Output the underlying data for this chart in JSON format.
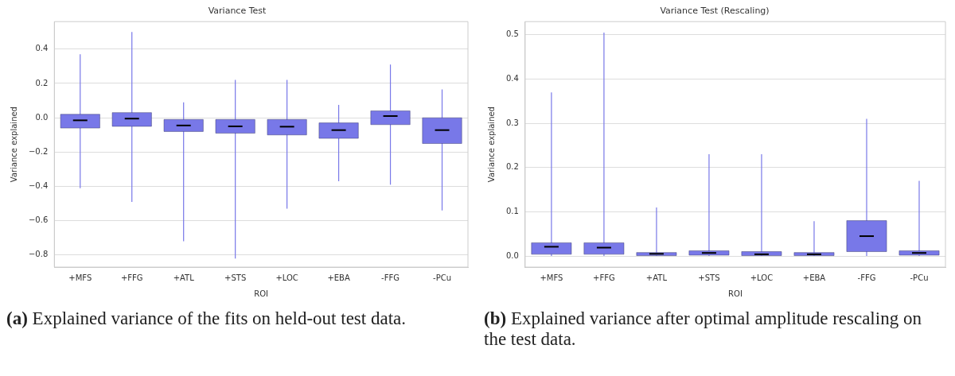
{
  "chart_data": [
    {
      "type": "box",
      "title": "Variance Test",
      "xlabel": "ROI",
      "ylabel": "Variance explained",
      "categories": [
        "+MFS",
        "+FFG",
        "+ATL",
        "+STS",
        "+LOC",
        "+EBA",
        "-FFG",
        "-PCu"
      ],
      "color": "#7878e8",
      "ylim": [
        -0.87,
        0.56
      ],
      "yticks": [
        {
          "value": -0.8,
          "label": "−0.8"
        },
        {
          "value": -0.6,
          "label": "−0.6"
        },
        {
          "value": -0.4,
          "label": "−0.4"
        },
        {
          "value": -0.2,
          "label": "−0.2"
        },
        {
          "value": 0,
          "label": "0.0"
        },
        0.2,
        0.4
      ],
      "grid": "y",
      "legend": false,
      "boxes": [
        {
          "low": -0.41,
          "q1": -0.06,
          "median": -0.015,
          "q3": 0.02,
          "high": 0.37
        },
        {
          "low": -0.49,
          "q1": -0.05,
          "median": -0.005,
          "q3": 0.03,
          "high": 0.5
        },
        {
          "low": -0.72,
          "q1": -0.08,
          "median": -0.045,
          "q3": -0.01,
          "high": 0.09
        },
        {
          "low": -0.82,
          "q1": -0.09,
          "median": -0.05,
          "q3": -0.01,
          "high": 0.22
        },
        {
          "low": -0.53,
          "q1": -0.1,
          "median": -0.052,
          "q3": -0.01,
          "high": 0.22
        },
        {
          "low": -0.37,
          "q1": -0.12,
          "median": -0.072,
          "q3": -0.03,
          "high": 0.075
        },
        {
          "low": -0.39,
          "q1": -0.04,
          "median": 0.01,
          "q3": 0.04,
          "high": 0.31
        },
        {
          "low": -0.54,
          "q1": -0.15,
          "median": -0.072,
          "q3": 0,
          "high": 0.165
        }
      ],
      "annotations": [
        "(a) Explained variance of the fits on held-out test data."
      ]
    },
    {
      "type": "box",
      "title": "Variance Test (Rescaling)",
      "xlabel": "ROI",
      "ylabel": "Variance explained",
      "categories": [
        "+MFS",
        "+FFG",
        "+ATL",
        "+STS",
        "+LOC",
        "+EBA",
        "-FFG",
        "-PCu"
      ],
      "color": "#7878e8",
      "ylim": [
        -0.025,
        0.53
      ],
      "yticks": [
        {
          "value": 0,
          "label": "0.0"
        },
        0.1,
        0.2,
        0.3,
        0.4,
        0.5
      ],
      "grid": "y",
      "legend": false,
      "boxes": [
        {
          "low": 0,
          "q1": 0.004,
          "median": 0.021,
          "q3": 0.03,
          "high": 0.37
        },
        {
          "low": 0,
          "q1": 0.004,
          "median": 0.019,
          "q3": 0.03,
          "high": 0.505
        },
        {
          "low": 0,
          "q1": 0.001,
          "median": 0.005,
          "q3": 0.008,
          "high": 0.11
        },
        {
          "low": 0,
          "q1": 0.002,
          "median": 0.007,
          "q3": 0.012,
          "high": 0.23
        },
        {
          "low": 0,
          "q1": 0.001,
          "median": 0.004,
          "q3": 0.01,
          "high": 0.23
        },
        {
          "low": 0,
          "q1": 0.001,
          "median": 0.004,
          "q3": 0.008,
          "high": 0.079
        },
        {
          "low": 0,
          "q1": 0.01,
          "median": 0.045,
          "q3": 0.08,
          "high": 0.31
        },
        {
          "low": 0,
          "q1": 0.002,
          "median": 0.007,
          "q3": 0.012,
          "high": 0.17
        }
      ],
      "annotations": [
        "(b) Explained variance after optimal amplitude rescaling on the test data."
      ]
    }
  ]
}
